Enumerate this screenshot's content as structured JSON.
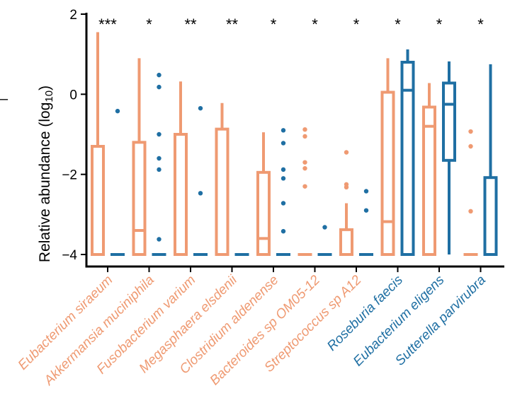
{
  "colors": {
    "group_a": "#EF9A72",
    "group_b": "#1F6FA3",
    "axis": "#000000"
  },
  "chart_data": {
    "type": "boxplot",
    "title": "",
    "xlabel": "",
    "ylabel_main": "Relative abundance (log",
    "ylabel_sub": "10",
    "ylabel_close": ")",
    "ylim": [
      -4.3,
      2.3
    ],
    "yticks": [
      -4,
      -2,
      0,
      2
    ],
    "ytick_labels": [
      "−4",
      "−2",
      "0",
      "2"
    ],
    "side_mark": "–",
    "categories": [
      {
        "name": "Eubacterium siraeum",
        "significance": "***",
        "label_color": "group_a",
        "a": {
          "min": -4,
          "q1": -4,
          "median": -4,
          "q3": -1.3,
          "max": 1.55,
          "outliers": []
        },
        "b": {
          "min": -4,
          "q1": -4,
          "median": -4,
          "q3": -4,
          "max": -4,
          "outliers": [
            -0.42
          ]
        }
      },
      {
        "name": "Akkermansia muciniphila",
        "significance": "*",
        "label_color": "group_a",
        "a": {
          "min": -4,
          "q1": -4,
          "median": -3.4,
          "q3": -1.2,
          "max": 0.9,
          "outliers": []
        },
        "b": {
          "min": -4,
          "q1": -4,
          "median": -4,
          "q3": -4,
          "max": -4,
          "outliers": [
            0.48,
            0.18,
            -1.0,
            -1.6,
            -1.88,
            -3.62
          ]
        }
      },
      {
        "name": "Fusobacterium varium",
        "significance": "**",
        "label_color": "group_a",
        "a": {
          "min": -4,
          "q1": -4,
          "median": -4,
          "q3": -1.0,
          "max": 0.32,
          "outliers": []
        },
        "b": {
          "min": -4,
          "q1": -4,
          "median": -4,
          "q3": -4,
          "max": -4,
          "outliers": [
            -0.35,
            -2.47
          ]
        }
      },
      {
        "name": "Megasphaera elsdenii",
        "significance": "**",
        "label_color": "group_a",
        "a": {
          "min": -4,
          "q1": -4,
          "median": -4,
          "q3": -0.87,
          "max": -0.22,
          "outliers": []
        },
        "b": {
          "min": -4,
          "q1": -4,
          "median": -4,
          "q3": -4,
          "max": -4,
          "outliers": []
        }
      },
      {
        "name": "Clostridium aldenense",
        "significance": "*",
        "label_color": "group_a",
        "a": {
          "min": -4,
          "q1": -4,
          "median": -3.6,
          "q3": -1.95,
          "max": -0.95,
          "outliers": []
        },
        "b": {
          "min": -4,
          "q1": -4,
          "median": -4,
          "q3": -4,
          "max": -4,
          "outliers": [
            -0.9,
            -1.22,
            -1.88,
            -2.1,
            -2.72,
            -3.42
          ]
        }
      },
      {
        "name": "Bacteroides sp OM05-12",
        "significance": "*",
        "label_color": "group_a",
        "a": {
          "min": -4,
          "q1": -4,
          "median": -4,
          "q3": -4,
          "max": -4,
          "outliers": [
            -0.88,
            -1.05,
            -1.7,
            -1.85,
            -2.3
          ]
        },
        "b": {
          "min": -4,
          "q1": -4,
          "median": -4,
          "q3": -4,
          "max": -4,
          "outliers": [
            -3.32
          ]
        }
      },
      {
        "name": "Streptococcus sp A12",
        "significance": "*",
        "label_color": "group_a",
        "a": {
          "min": -4,
          "q1": -4,
          "median": -4,
          "q3": -3.38,
          "max": -2.72,
          "outliers": [
            -1.45,
            -2.25,
            -2.32
          ]
        },
        "b": {
          "min": -4,
          "q1": -4,
          "median": -4,
          "q3": -4,
          "max": -4,
          "outliers": [
            -2.42,
            -2.9
          ]
        }
      },
      {
        "name": "Roseburia faecis",
        "significance": "*",
        "label_color": "group_b",
        "a": {
          "min": -4,
          "q1": -4,
          "median": -3.18,
          "q3": 0.05,
          "max": 0.9,
          "outliers": []
        },
        "b": {
          "min": -4,
          "q1": -4,
          "median": 0.1,
          "q3": 0.8,
          "max": 1.12,
          "outliers": []
        }
      },
      {
        "name": "Eubacterium eligens",
        "significance": "*",
        "label_color": "group_b",
        "a": {
          "min": -4,
          "q1": -4,
          "median": -0.8,
          "q3": -0.32,
          "max": 0.28,
          "outliers": []
        },
        "b": {
          "min": -4,
          "q1": -1.65,
          "median": -0.25,
          "q3": 0.28,
          "max": 0.82,
          "outliers": []
        }
      },
      {
        "name": "Sutterella parvirubra",
        "significance": "*",
        "label_color": "group_b",
        "a": {
          "min": -4,
          "q1": -4,
          "median": -4,
          "q3": -4,
          "max": -4,
          "outliers": [
            -0.93,
            -1.3,
            -2.92
          ]
        },
        "b": {
          "min": -4,
          "q1": -4,
          "median": -4,
          "q3": -2.08,
          "max": 0.75,
          "outliers": []
        }
      }
    ]
  }
}
